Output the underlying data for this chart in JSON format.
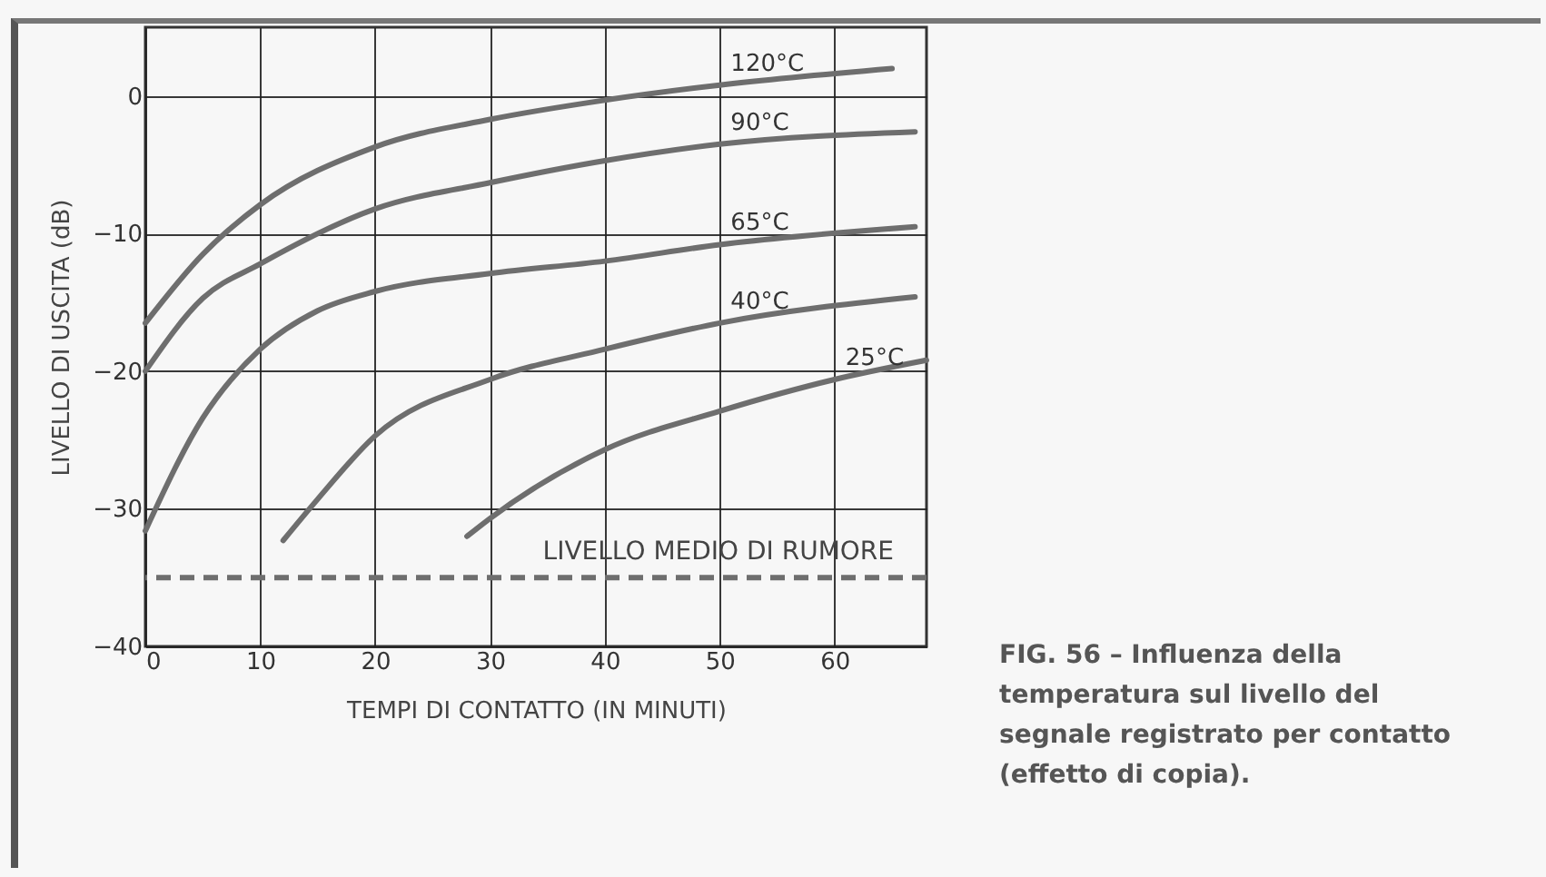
{
  "chart_data": {
    "type": "line",
    "xlabel": "TEMPI DI CONTATTO (IN MINUTI)",
    "ylabel": "LIVELLO DI USCITA (dB)",
    "xlim": [
      0,
      68
    ],
    "ylim": [
      -40,
      5
    ],
    "xticks": [
      0,
      10,
      20,
      30,
      40,
      50,
      60
    ],
    "yticks": [
      -40,
      -30,
      -20,
      -10,
      0
    ],
    "grid": true,
    "line_style": "solid",
    "series": [
      {
        "name": "120°C",
        "color": "#6e6e6e",
        "x": [
          0,
          5,
          10,
          20,
          30,
          40,
          50,
          65
        ],
        "values": [
          -16.5,
          -11.5,
          -7.9,
          -3.7,
          -1.7,
          -0.3,
          0.8,
          2.0
        ]
      },
      {
        "name": "90°C",
        "color": "#6e6e6e",
        "x": [
          0,
          5,
          10,
          20,
          30,
          40,
          50,
          67
        ],
        "values": [
          -20,
          -14.7,
          -12.2,
          -8.2,
          -6.3,
          -4.7,
          -3.5,
          -2.6
        ]
      },
      {
        "name": "65°C",
        "color": "#6e6e6e",
        "x": [
          0,
          5,
          10,
          15,
          20,
          30,
          40,
          50,
          67
        ],
        "values": [
          -31.6,
          -23.4,
          -18.4,
          -15.6,
          -14.2,
          -12.9,
          -12,
          -10.8,
          -9.5
        ]
      },
      {
        "name": "40°C",
        "color": "#6e6e6e",
        "x": [
          12,
          15,
          20,
          30,
          40,
          50,
          67
        ],
        "values": [
          -32.3,
          -29.3,
          -24.7,
          -20.6,
          -18.4,
          -16.5,
          -14.6
        ]
      },
      {
        "name": "25°C",
        "color": "#6e6e6e",
        "x": [
          28,
          30,
          40,
          50,
          60,
          68
        ],
        "values": [
          -32,
          -30.7,
          -25.7,
          -22.9,
          -20.6,
          -19.2
        ]
      }
    ],
    "ref_lines": [
      {
        "axis": "y",
        "value": -35,
        "label": "LIVELLO MEDIO DI RUMORE",
        "color": "#6e6e6e",
        "line_style": "dashed"
      }
    ],
    "annotations": [
      "FIG. 56 – Influenza della temperatura sul livello del segnale registrato per contatto (effetto di copia)."
    ]
  }
}
